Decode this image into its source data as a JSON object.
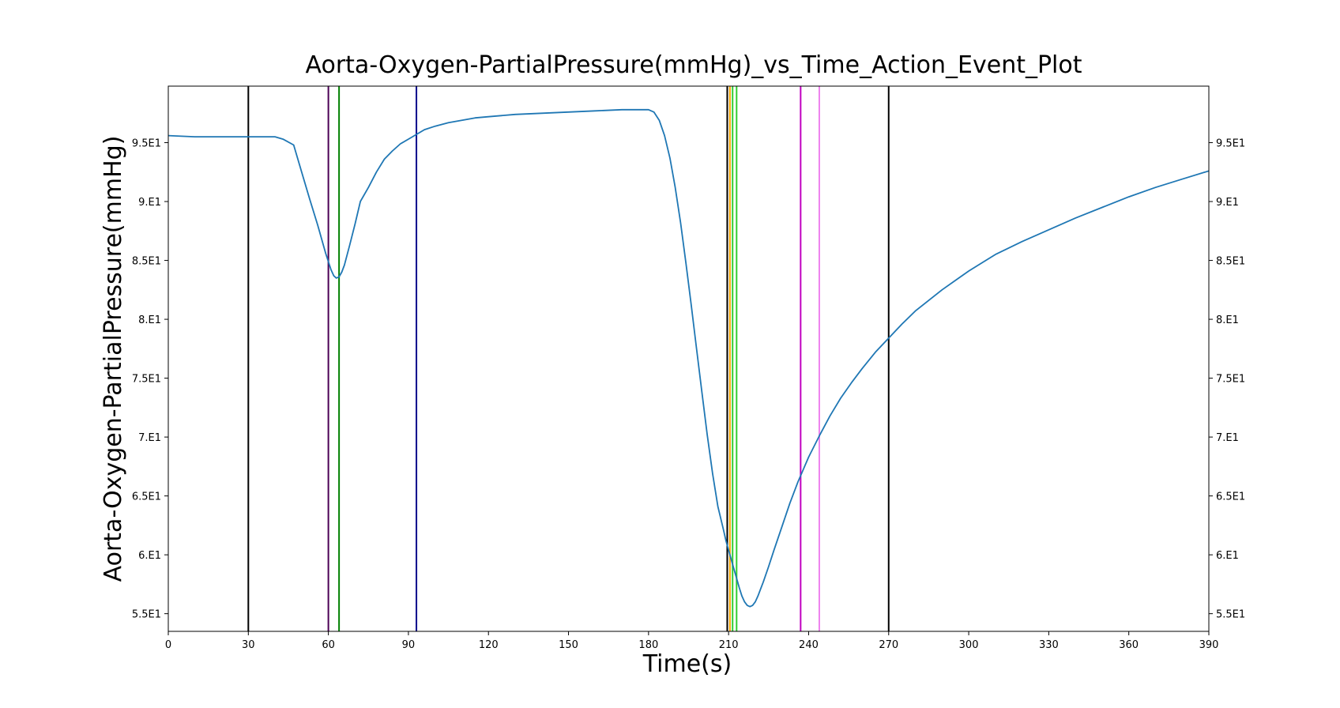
{
  "chart_data": {
    "type": "line",
    "title": "Aorta-Oxygen-PartialPressure(mmHg)_vs_Time_Action_Event_Plot",
    "xlabel": "Time(s)",
    "ylabel": "Aorta-Oxygen-PartialPressure(mmHg)",
    "xlim": [
      0,
      390
    ],
    "ylim": [
      53.5,
      99.8
    ],
    "x_ticks": [
      0,
      30,
      60,
      90,
      120,
      150,
      180,
      210,
      240,
      270,
      300,
      330,
      360,
      390
    ],
    "x_tick_labels": [
      "0",
      "30",
      "60",
      "90",
      "120",
      "150",
      "180",
      "210",
      "240",
      "270",
      "300",
      "330",
      "360",
      "390"
    ],
    "y_ticks": [
      55,
      60,
      65,
      70,
      75,
      80,
      85,
      90,
      95
    ],
    "y_tick_labels": [
      "5.5E1",
      "6.E1",
      "6.5E1",
      "7.E1",
      "7.5E1",
      "8.E1",
      "8.5E1",
      "9.E1",
      "9.5E1"
    ],
    "grid": false,
    "series_color": "#1f77b4",
    "series": [
      {
        "x": [
          0,
          10,
          20,
          30,
          35,
          40,
          43,
          47,
          50,
          53,
          56,
          59,
          61,
          62,
          63,
          64,
          65,
          66,
          68,
          70,
          72,
          75,
          78,
          81,
          84,
          87,
          90,
          93,
          96,
          100,
          105,
          110,
          115,
          120,
          130,
          140,
          150,
          160,
          170,
          180,
          182,
          184,
          186,
          188,
          190,
          192,
          194,
          196,
          198,
          200,
          202,
          204,
          206,
          208,
          209,
          210,
          211,
          212,
          213,
          214,
          215,
          216,
          217,
          218,
          219,
          220,
          221,
          222,
          223,
          225,
          227,
          230,
          233,
          236,
          240,
          244,
          248,
          252,
          256,
          260,
          265,
          270,
          275,
          280,
          285,
          290,
          295,
          300,
          305,
          310,
          320,
          330,
          340,
          350,
          360,
          370,
          380,
          390
        ],
        "y": [
          95.6,
          95.5,
          95.5,
          95.5,
          95.5,
          95.5,
          95.3,
          94.8,
          92.5,
          90.2,
          88.0,
          85.6,
          84.2,
          83.7,
          83.5,
          83.6,
          84.0,
          84.6,
          86.3,
          88.1,
          90.0,
          91.2,
          92.5,
          93.6,
          94.3,
          94.9,
          95.3,
          95.7,
          96.1,
          96.4,
          96.7,
          96.9,
          97.1,
          97.2,
          97.4,
          97.5,
          97.6,
          97.7,
          97.8,
          97.8,
          97.6,
          96.9,
          95.6,
          93.7,
          91.2,
          88.2,
          84.8,
          81.2,
          77.5,
          73.8,
          70.2,
          66.9,
          64.1,
          62.2,
          61.2,
          60.4,
          59.6,
          58.8,
          58.0,
          57.2,
          56.5,
          56.0,
          55.7,
          55.6,
          55.7,
          56.0,
          56.5,
          57.1,
          57.7,
          59.0,
          60.4,
          62.4,
          64.4,
          66.2,
          68.3,
          70.1,
          71.8,
          73.3,
          74.6,
          75.8,
          77.2,
          78.4,
          79.6,
          80.7,
          81.6,
          82.5,
          83.3,
          84.1,
          84.8,
          85.5,
          86.6,
          87.6,
          88.6,
          89.5,
          90.4,
          91.2,
          91.9,
          92.6
        ]
      }
    ],
    "event_lines": [
      {
        "x": 30,
        "color": "#000000"
      },
      {
        "x": 60,
        "color": "#4b0055"
      },
      {
        "x": 64,
        "color": "#008000"
      },
      {
        "x": 93,
        "color": "#00008b"
      },
      {
        "x": 209.5,
        "color": "#000000"
      },
      {
        "x": 210.5,
        "color": "#ffa500"
      },
      {
        "x": 211.5,
        "color": "#32cd32"
      },
      {
        "x": 213,
        "color": "#32cd32"
      },
      {
        "x": 237,
        "color": "#c000c0"
      },
      {
        "x": 244,
        "color": "#ee82ee"
      },
      {
        "x": 270,
        "color": "#000000"
      }
    ]
  }
}
